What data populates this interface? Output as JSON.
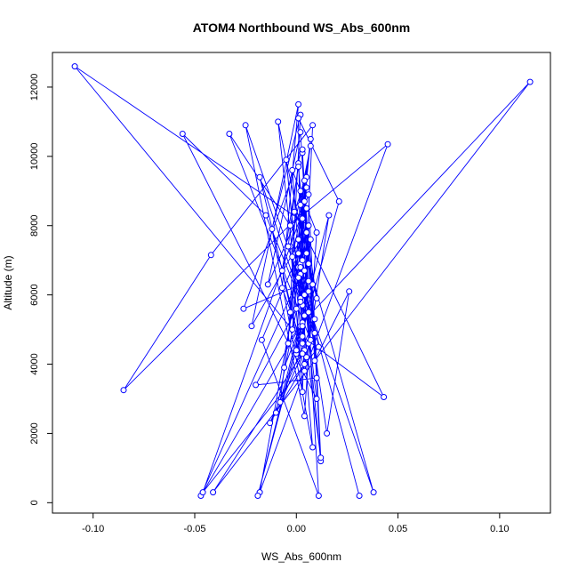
{
  "chart_data": {
    "type": "line",
    "title": "ATOM4 Northbound WS_Abs_600nm",
    "xlabel": "WS_Abs_600nm",
    "ylabel": "Altitude (m)",
    "xlim": [
      -0.12,
      0.125
    ],
    "ylim": [
      -300,
      13000
    ],
    "x_ticks": [
      -0.1,
      -0.05,
      0.0,
      0.05,
      0.1
    ],
    "x_tick_labels": [
      "-0.10",
      "-0.05",
      "0.00",
      "0.05",
      "0.10"
    ],
    "y_ticks": [
      0,
      2000,
      4000,
      6000,
      8000,
      10000,
      12000
    ],
    "y_tick_labels": [
      "0",
      "2000",
      "4000",
      "6000",
      "8000",
      "10000",
      "12000"
    ],
    "grid": false,
    "legend": "none",
    "series_color": "#0000ff",
    "markers": "open-circle",
    "series": [
      {
        "x": [
          0.031,
          0.001,
          0.004,
          -0.006,
          0.003,
          0.011,
          -0.017,
          0.001,
          -0.008,
          0.006,
          0.003,
          0.01,
          -0.02,
          0.002,
          -0.005,
          0.004,
          0.008,
          -0.012,
          0.002,
          -0.004,
          0.006,
          -0.047,
          0.002,
          0.005,
          -0.001,
          0.043,
          0.003,
          0.008,
          -0.009,
          0.002,
          0.005,
          -0.002,
          0.01,
          0.004,
          -0.025,
          0.038,
          0.006,
          0.0,
          -0.003,
          0.007,
          0.002,
          0.004,
          -0.013,
          0.009,
          0.001,
          0.005,
          -0.002,
          0.003,
          0.006,
          -0.022,
          0.001,
          -0.007,
          0.003,
          0.008,
          -0.042,
          -0.085,
          0.005,
          0.002,
          -0.018,
          0.003,
          -0.01,
          0.004,
          0.001,
          0.007,
          -0.002,
          -0.109,
          0.006,
          0.012,
          0.004,
          0.001,
          -0.004,
          0.009,
          0.003,
          -0.015,
          -0.056,
          0.01,
          0.002,
          0.003,
          0.115,
          -0.041,
          0.006,
          0.004,
          -0.014,
          0.002,
          0.009,
          0.026,
          0.015,
          0.001,
          -0.003,
          0.004,
          0.003,
          0.011,
          -0.046,
          0.006,
          0.012,
          0.002,
          0.001,
          0.021,
          0.0,
          0.006,
          -0.026,
          0.003,
          0.005,
          -0.018,
          0.045,
          -0.003,
          -0.033,
          0.007,
          0.002,
          0.01,
          0.005,
          0.001,
          -0.007,
          0.004,
          0.016,
          -0.019,
          0.003,
          0.007,
          0.002,
          0.0
        ],
        "y": [
          200,
          6800,
          5400,
          3900,
          8200,
          200,
          4700,
          7200,
          2900,
          6100,
          10100,
          3600,
          3400,
          5800,
          9900,
          4400,
          1600,
          7900,
          11200,
          4600,
          5500,
          200,
          6600,
          9400,
          8400,
          3050,
          4800,
          6300,
          11000,
          5100,
          4200,
          9600,
          7800,
          2500,
          10900,
          300,
          6900,
          5600,
          7400,
          10300,
          8600,
          4000,
          2300,
          5300,
          6500,
          9100,
          7100,
          3200,
          8000,
          5100,
          11500,
          6200,
          4600,
          10900,
          7150,
          3250,
          8500,
          5900,
          9400,
          4300,
          2600,
          6700,
          7600,
          10500,
          5000,
          12600,
          8000,
          1200,
          6000,
          9800,
          7400,
          4900,
          5700,
          8300,
          10650,
          3000,
          6900,
          5200,
          12150,
          300,
          4600,
          8700,
          6300,
          10700,
          4100,
          6100,
          2000,
          7600,
          5500,
          9300,
          7000,
          4500,
          300,
          8900,
          1300,
          5800,
          11100,
          8700,
          4300,
          6400,
          5600,
          10200,
          7800,
          300,
          10350,
          8000,
          10650,
          4700,
          9000,
          5900,
          7200,
          9700,
          6700,
          3800,
          8300,
          200,
          5100,
          7600,
          6800,
          4400
        ]
      }
    ]
  }
}
